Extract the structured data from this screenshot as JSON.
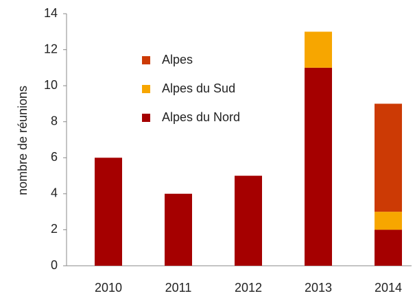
{
  "chart_data": {
    "type": "stacked_bar",
    "y_axis_label": "nombre de réunions",
    "categories": [
      "2010",
      "2011",
      "2012",
      "2013",
      "2014"
    ],
    "series": [
      {
        "name": "Alpes du Nord",
        "color": "#a50000",
        "values": [
          6,
          4,
          5,
          11,
          2
        ]
      },
      {
        "name": "Alpes du Sud",
        "color": "#f7a600",
        "values": [
          0,
          0,
          0,
          2,
          1
        ]
      },
      {
        "name": "Alpes",
        "color": "#cc3a05",
        "values": [
          0,
          0,
          0,
          0,
          6
        ]
      }
    ],
    "ylim": [
      0,
      14
    ],
    "yticks": [
      0,
      2,
      4,
      6,
      8,
      10,
      12,
      14
    ],
    "grid": false,
    "legend": "upper left"
  }
}
